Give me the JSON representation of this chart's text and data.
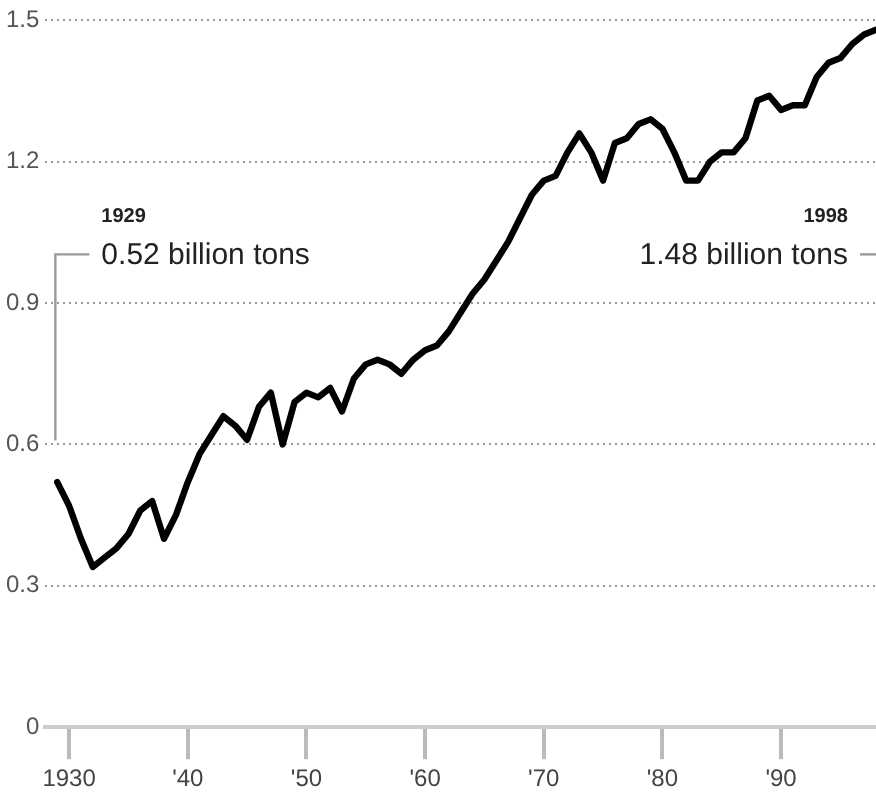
{
  "chart_data": {
    "type": "line",
    "x": [
      1929,
      1930,
      1931,
      1932,
      1933,
      1934,
      1935,
      1936,
      1937,
      1938,
      1939,
      1940,
      1941,
      1942,
      1943,
      1944,
      1945,
      1946,
      1947,
      1948,
      1949,
      1950,
      1951,
      1952,
      1953,
      1954,
      1955,
      1956,
      1957,
      1958,
      1959,
      1960,
      1961,
      1962,
      1963,
      1964,
      1965,
      1966,
      1967,
      1968,
      1969,
      1970,
      1971,
      1972,
      1973,
      1974,
      1975,
      1976,
      1977,
      1978,
      1979,
      1980,
      1981,
      1982,
      1983,
      1984,
      1985,
      1986,
      1987,
      1988,
      1989,
      1990,
      1991,
      1992,
      1993,
      1994,
      1995,
      1996,
      1997,
      1998
    ],
    "series": [
      {
        "color": "#000000",
        "values": [
          0.52,
          0.47,
          0.4,
          0.34,
          0.36,
          0.38,
          0.41,
          0.46,
          0.48,
          0.4,
          0.45,
          0.52,
          0.58,
          0.62,
          0.66,
          0.64,
          0.61,
          0.68,
          0.71,
          0.6,
          0.69,
          0.71,
          0.7,
          0.72,
          0.67,
          0.74,
          0.77,
          0.78,
          0.77,
          0.75,
          0.78,
          0.8,
          0.81,
          0.84,
          0.88,
          0.92,
          0.95,
          0.99,
          1.03,
          1.08,
          1.13,
          1.16,
          1.17,
          1.22,
          1.26,
          1.22,
          1.16,
          1.24,
          1.25,
          1.28,
          1.29,
          1.27,
          1.22,
          1.16,
          1.16,
          1.2,
          1.22,
          1.22,
          1.25,
          1.33,
          1.34,
          1.31,
          1.32,
          1.32,
          1.38,
          1.41,
          1.42,
          1.45,
          1.47,
          1.48
        ]
      }
    ],
    "xlim": [
      1928,
      1998
    ],
    "xticks": [
      {
        "value": 1930,
        "label": "1930"
      },
      {
        "value": 1940,
        "label": "'40"
      },
      {
        "value": 1950,
        "label": "'50"
      },
      {
        "value": 1960,
        "label": "'60"
      },
      {
        "value": 1970,
        "label": "'70"
      },
      {
        "value": 1980,
        "label": "'80"
      },
      {
        "value": 1990,
        "label": "'90"
      }
    ],
    "ylim": [
      0,
      1.5
    ],
    "yticks": [
      0,
      0.3,
      0.6,
      0.9,
      1.2,
      1.5
    ],
    "grid": "y",
    "legend": false,
    "marker": "none",
    "line_style": "solid",
    "annotations": [
      "1929",
      "0.52 billion tons",
      "1998",
      "1.48 billion tons"
    ]
  }
}
